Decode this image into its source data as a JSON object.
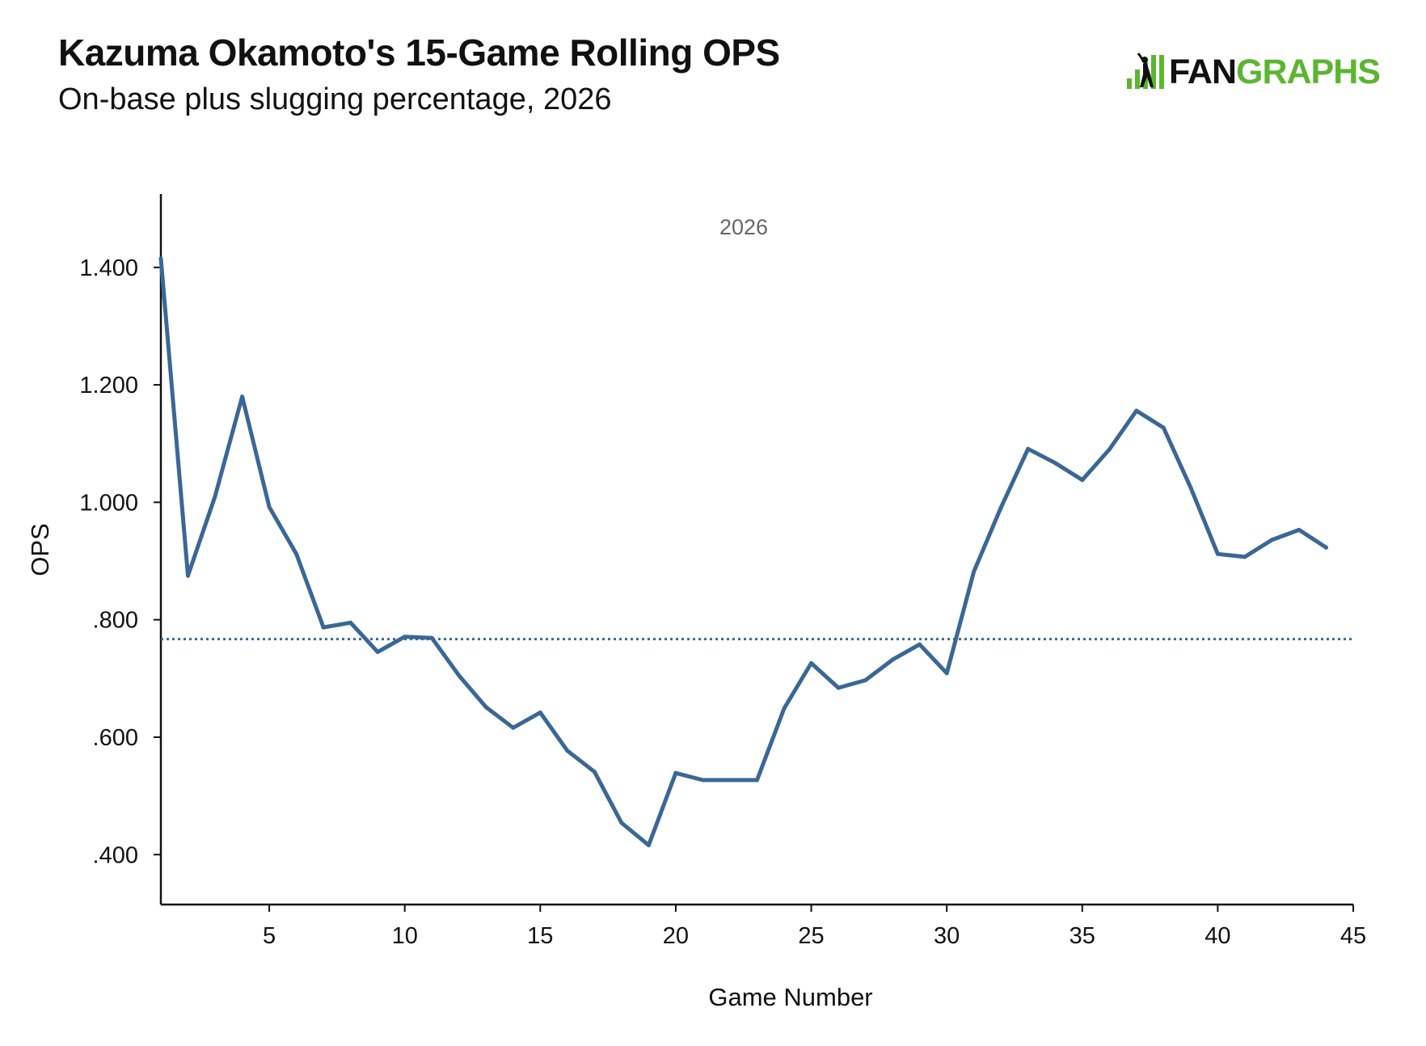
{
  "header": {
    "title": "Kazuma Okamoto's 15-Game Rolling OPS",
    "subtitle": "On-base plus slugging percentage, 2026"
  },
  "logo": {
    "text_dark": "FAN",
    "text_green": "GRAPHS",
    "colors": {
      "dark": "#111111",
      "green": "#5cb531"
    }
  },
  "chart_data": {
    "type": "line",
    "panel_label": "2026",
    "xlabel": "Game Number",
    "ylabel": "OPS",
    "xlim": [
      1,
      45
    ],
    "ylim": [
      0.315,
      1.525
    ],
    "x_ticks": [
      5,
      10,
      15,
      20,
      25,
      30,
      35,
      40,
      45
    ],
    "x_tick_labels": [
      "5",
      "10",
      "15",
      "20",
      "25",
      "30",
      "35",
      "40",
      "45"
    ],
    "y_ticks": [
      0.4,
      0.6,
      0.8,
      1.0,
      1.2,
      1.4
    ],
    "y_tick_labels": [
      ".400",
      ".600",
      ".800",
      "1.000",
      "1.200",
      "1.400"
    ],
    "grid": false,
    "legend": "none",
    "colors": {
      "series": "#3a6796",
      "reference": "#3a6796"
    },
    "series": [
      {
        "x": [
          1,
          2,
          3,
          4,
          5,
          6,
          7,
          8,
          9,
          10,
          11,
          12,
          13,
          14,
          15,
          16,
          17,
          18,
          19,
          20,
          21,
          22,
          23,
          24,
          25,
          26,
          27,
          28,
          29,
          30,
          31,
          32,
          33,
          34,
          35,
          36,
          37,
          38,
          39,
          40,
          41,
          42,
          43,
          44
        ],
        "values": [
          1.415,
          0.875,
          1.01,
          1.18,
          0.992,
          0.912,
          0.787,
          0.795,
          0.745,
          0.771,
          0.769,
          0.705,
          0.651,
          0.616,
          0.642,
          0.577,
          0.541,
          0.454,
          0.416,
          0.539,
          0.527,
          0.527,
          0.527,
          0.649,
          0.726,
          0.684,
          0.697,
          0.732,
          0.758,
          0.709,
          0.882,
          0.991,
          1.091,
          1.067,
          1.038,
          1.09,
          1.156,
          1.127,
          1.025,
          0.912,
          0.907,
          0.936,
          0.953,
          0.923
        ]
      }
    ],
    "reference_line": {
      "y": 0.767,
      "style": "dotted"
    }
  }
}
